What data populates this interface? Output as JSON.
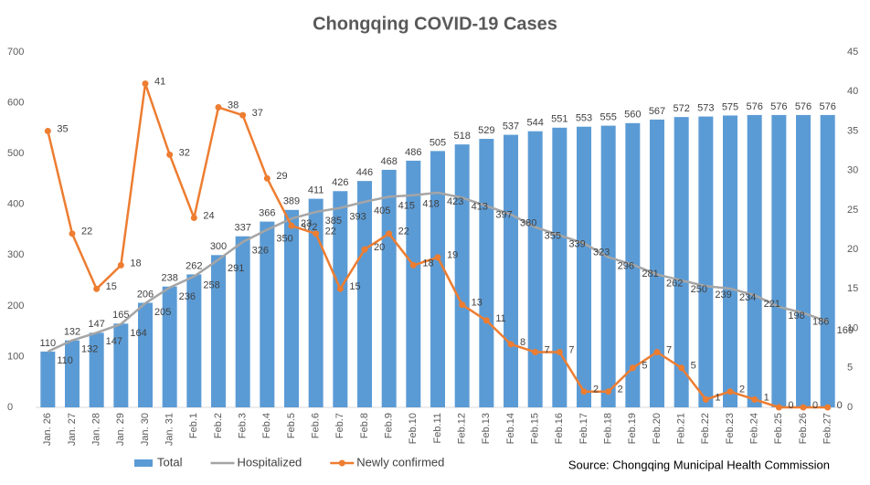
{
  "chart_data": {
    "type": "bar-line",
    "title": "Chongqing COVID-19 Cases",
    "categories": [
      "Jan. 26",
      "Jan. 27",
      "Jan. 28",
      "Jan. 29",
      "Jan. 30",
      "Jan. 31",
      "Feb.1",
      "Feb.2",
      "Feb.3",
      "Feb.4",
      "Feb.5",
      "Feb.6",
      "Feb.7",
      "Feb.8",
      "Feb.9",
      "Feb.10",
      "Feb.11",
      "Feb.12",
      "Feb.13",
      "Feb.14",
      "Feb.15",
      "Feb.16",
      "Feb.17",
      "Feb.18",
      "Feb.19",
      "Feb.20",
      "Feb.21",
      "Feb.22",
      "Feb.23",
      "Feb.24",
      "Feb.25",
      "Feb.26",
      "Feb.27"
    ],
    "series": [
      {
        "name": "Total",
        "kind": "bar",
        "color": "#5b9bd5",
        "values": [
          110,
          132,
          147,
          165,
          206,
          238,
          262,
          300,
          337,
          366,
          389,
          411,
          426,
          446,
          468,
          486,
          505,
          518,
          529,
          537,
          544,
          551,
          553,
          555,
          560,
          567,
          572,
          573,
          575,
          576,
          576,
          576,
          576
        ]
      },
      {
        "name": "Hospitalized",
        "kind": "line",
        "color": "#a5a5a5",
        "values": [
          110,
          132,
          147,
          164,
          205,
          236,
          258,
          291,
          326,
          350,
          372,
          385,
          393,
          405,
          415,
          418,
          423,
          413,
          397,
          380,
          355,
          339,
          323,
          296,
          281,
          262,
          250,
          239,
          234,
          221,
          198,
          186,
          169
        ]
      },
      {
        "name": "Newly confirmed",
        "kind": "line",
        "axis": "y2",
        "color": "#ed7d31",
        "values": [
          35,
          22,
          15,
          18,
          41,
          32,
          24,
          38,
          37,
          29,
          23,
          22,
          15,
          20,
          22,
          18,
          19,
          13,
          11,
          8,
          7,
          7,
          2,
          2,
          5,
          7,
          5,
          1,
          2,
          1,
          0,
          0,
          0
        ]
      }
    ],
    "ylim": [
      0,
      700
    ],
    "yticks": [
      0,
      100,
      200,
      300,
      400,
      500,
      600,
      700
    ],
    "y2lim": [
      0,
      45
    ],
    "y2ticks": [
      0,
      5,
      10,
      15,
      20,
      25,
      30,
      35,
      40,
      45
    ],
    "source": "Source: Chongqing Municipal Health Commission"
  }
}
